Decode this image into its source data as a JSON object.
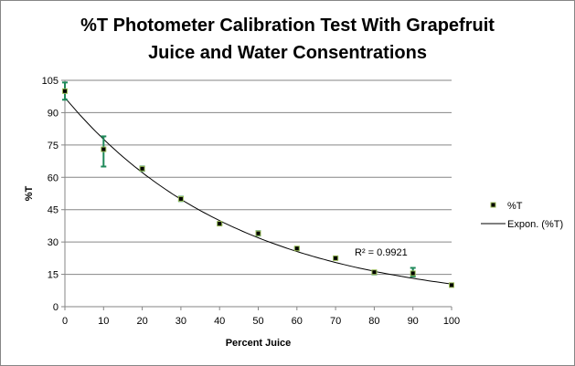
{
  "chart_data": {
    "type": "scatter",
    "title_line1": "%T  Photometer Calibration Test With Grapefruit",
    "title_line2": "Juice and Water Consentrations",
    "xlabel": "Percent Juice",
    "ylabel": "%T",
    "xlim": [
      0,
      100
    ],
    "ylim": [
      0,
      105
    ],
    "xticks": [
      "0",
      "10",
      "20",
      "30",
      "40",
      "50",
      "60",
      "70",
      "80",
      "90",
      "100"
    ],
    "yticks": [
      "0",
      "15",
      "30",
      "45",
      "60",
      "75",
      "90",
      "105"
    ],
    "grid": "horizontal",
    "series": [
      {
        "name": "%T",
        "x": [
          0,
          10,
          20,
          30,
          40,
          50,
          60,
          70,
          80,
          90,
          100
        ],
        "y": [
          100,
          73,
          64,
          50,
          38.5,
          34,
          27,
          22.5,
          16,
          15.5,
          10
        ],
        "err_low": [
          96,
          65,
          63,
          49,
          38,
          33,
          26.5,
          22,
          15,
          14,
          9.8
        ],
        "err_high": [
          104,
          79,
          65,
          51,
          39,
          35,
          27.5,
          23,
          16.5,
          18,
          10.2
        ]
      }
    ],
    "trendline": {
      "name": "Expon. (%T)",
      "a": 97,
      "b": -0.0222,
      "r2_label": "R² = 0.9921"
    },
    "legend_position": "right",
    "colors": {
      "marker": "#000000",
      "marker_border": "#9bbb59",
      "error": "#1f8a5a",
      "trend": "#000000",
      "grid": "#868686"
    }
  }
}
